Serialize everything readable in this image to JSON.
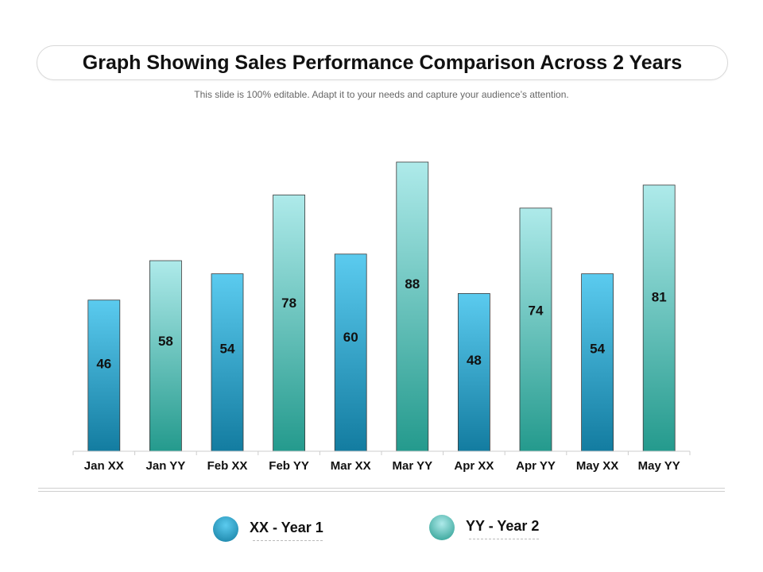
{
  "header": {
    "title": "Graph Showing Sales Performance Comparison Across 2 Years",
    "subtitle": "This slide is 100% editable. Adapt it to your needs and capture your audience’s attention."
  },
  "colors": {
    "year1_top": "#5bcbef",
    "year1_bottom": "#137ca0",
    "year2_top": "#aeeaea",
    "year2_bottom": "#249a8d"
  },
  "chart_data": {
    "type": "bar",
    "title": "Graph Showing Sales Performance Comparison Across 2 Years",
    "categories": [
      "Jan XX",
      "Jan YY",
      "Feb XX",
      "Feb YY",
      "Mar XX",
      "Mar YY",
      "Apr XX",
      "Apr YY",
      "May XX",
      "May YY"
    ],
    "values": [
      46,
      58,
      54,
      78,
      60,
      88,
      48,
      74,
      54,
      81
    ],
    "series_of_bar": [
      "XX",
      "YY",
      "XX",
      "YY",
      "XX",
      "YY",
      "XX",
      "YY",
      "XX",
      "YY"
    ],
    "ylim": [
      0,
      88
    ],
    "grid": false,
    "legend_position": "bottom"
  },
  "legend": {
    "items": [
      {
        "label": "XX - Year 1"
      },
      {
        "label": "YY - Year 2"
      }
    ]
  }
}
